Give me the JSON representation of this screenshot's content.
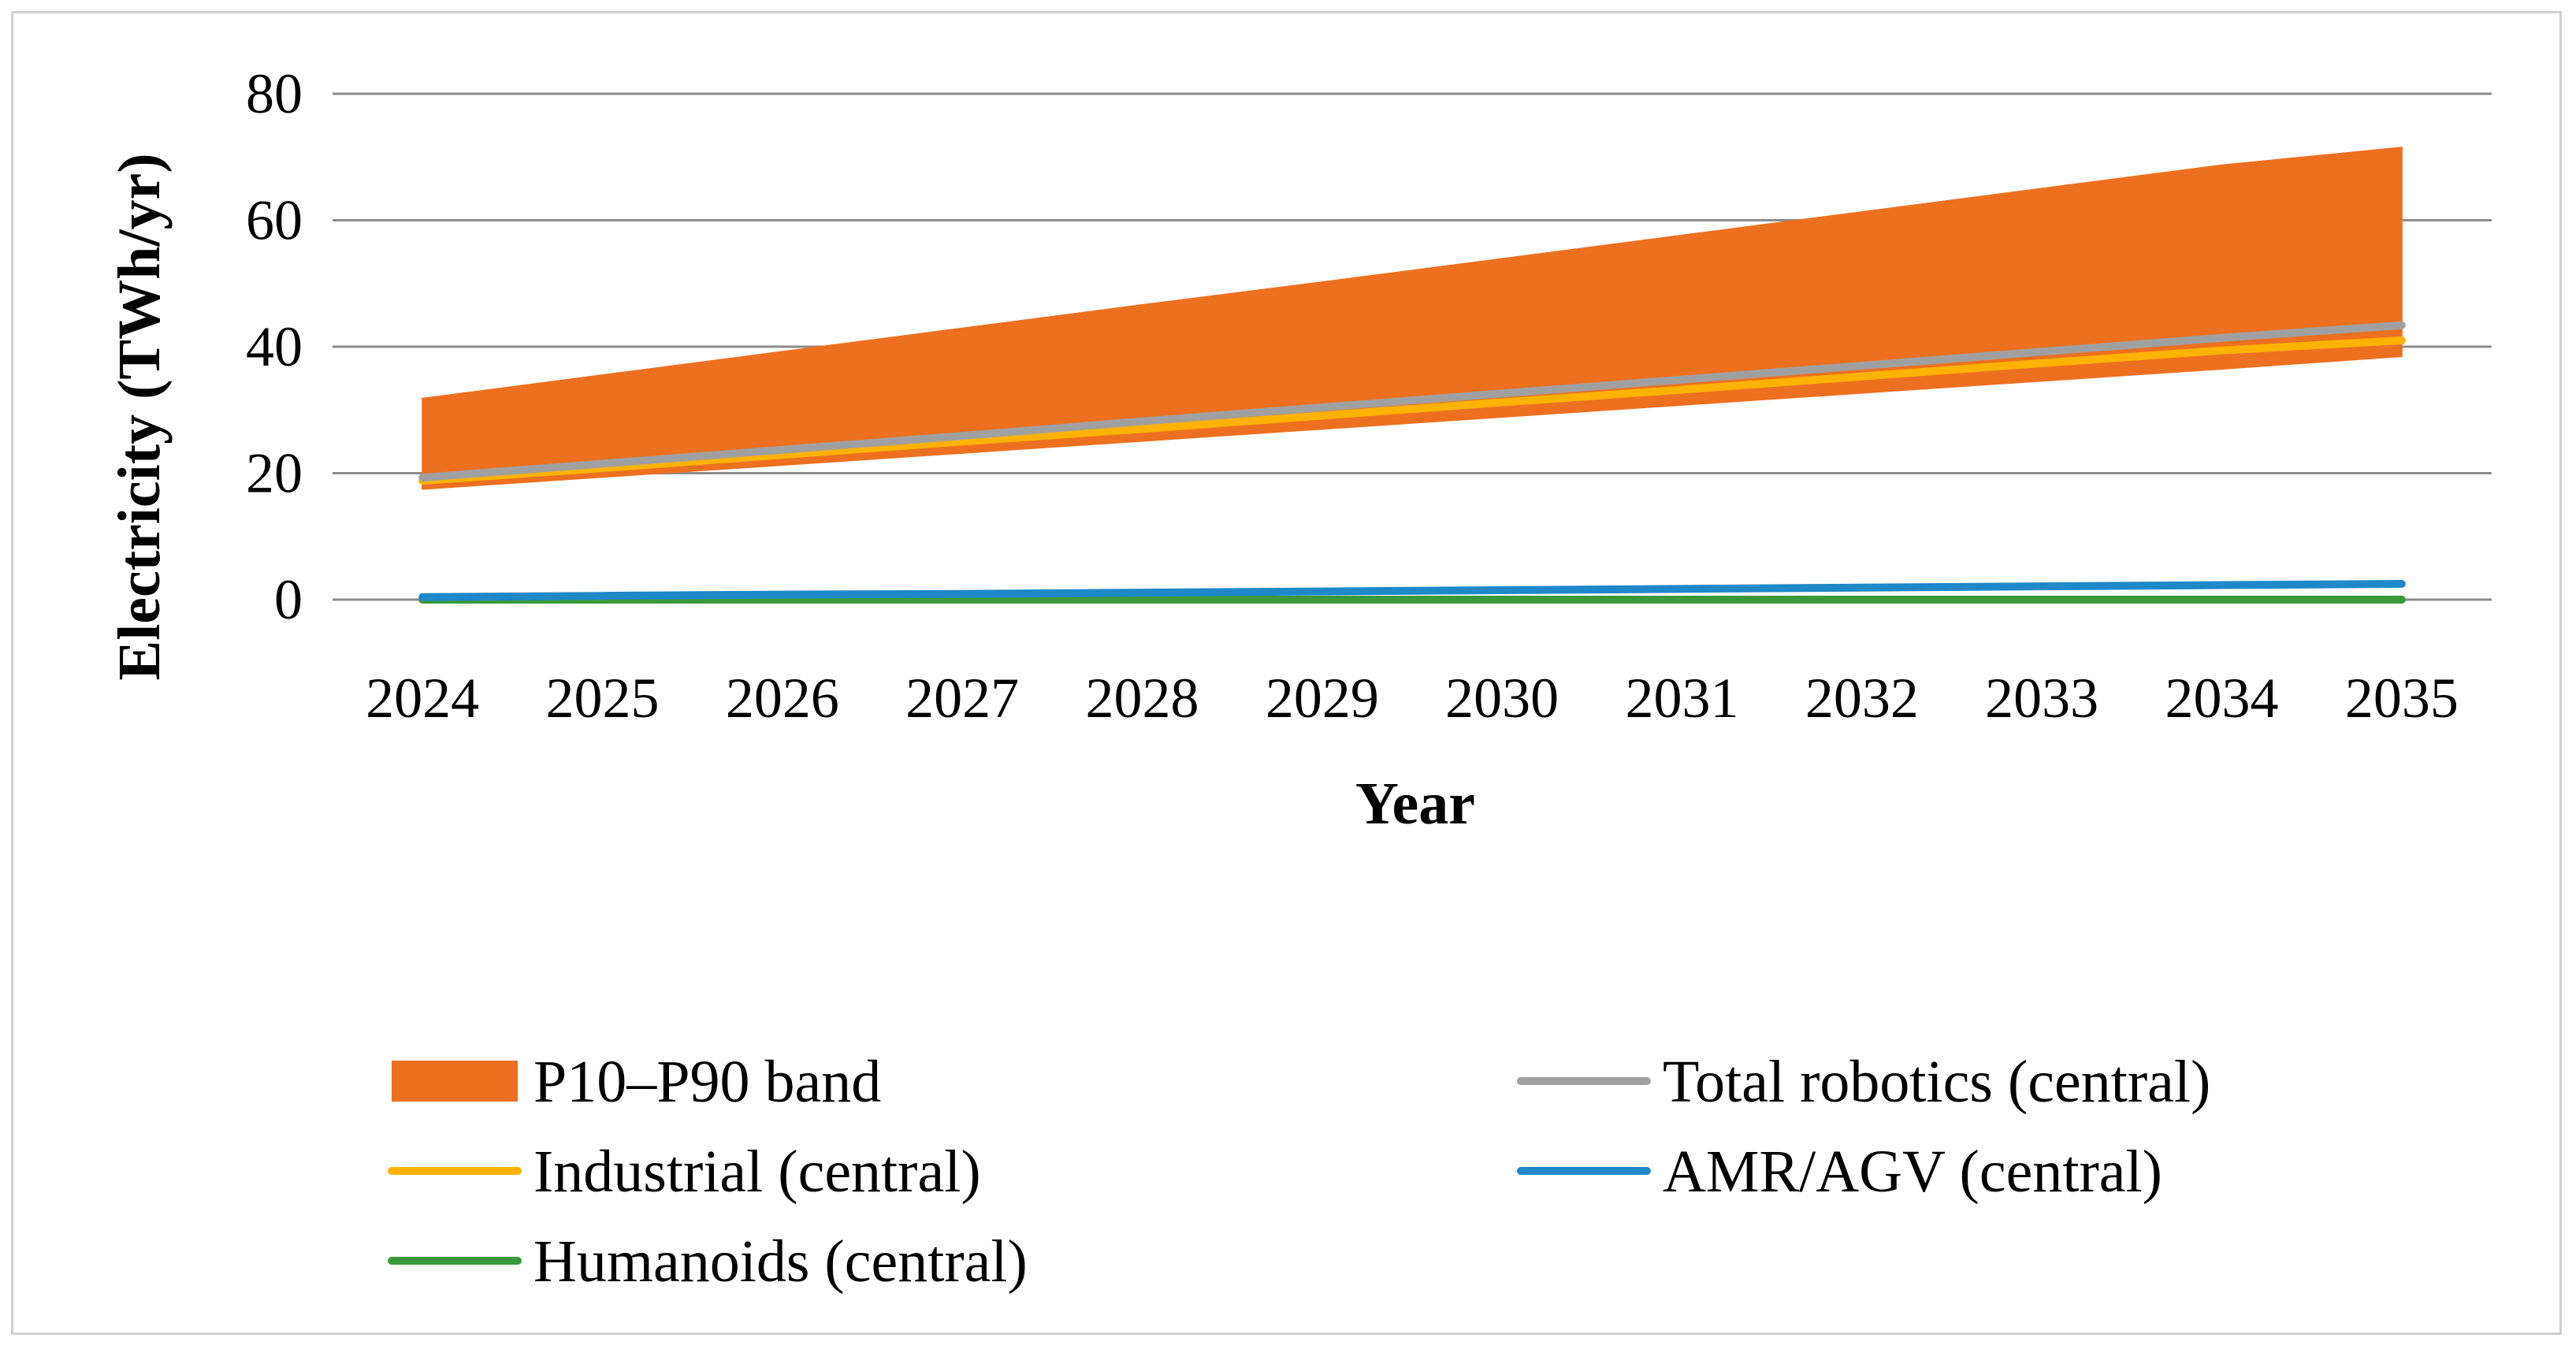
{
  "chart_data": {
    "type": "area",
    "title": "",
    "xlabel": "Year",
    "ylabel": "Electricity (TWh/yr)",
    "ylim": [
      0,
      80
    ],
    "yticks": [
      0,
      20,
      40,
      60,
      80
    ],
    "grid": true,
    "legend_position": "bottom",
    "x": [
      "2024",
      "2025",
      "2026",
      "2027",
      "2028",
      "2029",
      "2030",
      "2031",
      "2032",
      "2033",
      "2034",
      "2035"
    ],
    "band": {
      "name": "P10–P90 band",
      "color": "#ED7020",
      "lower": [
        17.5,
        19.4,
        21.3,
        23.2,
        25.1,
        27.0,
        28.9,
        30.8,
        32.7,
        34.6,
        36.5,
        38.5
      ],
      "upper": [
        31.8,
        35.5,
        39.2,
        42.9,
        46.6,
        50.2,
        53.9,
        57.6,
        61.3,
        65.0,
        68.7,
        71.5
      ]
    },
    "series": [
      {
        "name": "Total robotics (central)",
        "color": "#A0A0A0",
        "values": [
          19.3,
          21.5,
          23.7,
          25.9,
          28.2,
          30.4,
          32.6,
          34.8,
          37.0,
          39.2,
          41.4,
          43.4
        ]
      },
      {
        "name": "Industrial (central)",
        "color": "#FFB300",
        "values": [
          18.8,
          20.8,
          22.9,
          25.0,
          27.0,
          29.1,
          31.2,
          33.2,
          35.3,
          37.4,
          39.4,
          41.0
        ]
      },
      {
        "name": "AMR/AGV (central)",
        "color": "#1E88C8",
        "values": [
          0.4,
          0.6,
          0.8,
          0.9,
          1.1,
          1.3,
          1.5,
          1.7,
          1.9,
          2.1,
          2.3,
          2.5
        ]
      },
      {
        "name": "Humanoids (central)",
        "color": "#3A9A3A",
        "values": [
          0.0,
          0.0,
          0.0,
          0.0,
          0.0,
          0.0,
          0.0,
          0.0,
          0.0,
          0.0,
          0.0,
          0.0
        ]
      }
    ],
    "legend": [
      {
        "name": "P10–P90 band",
        "kind": "area",
        "color": "#ED7020"
      },
      {
        "name": "Total robotics (central)",
        "kind": "line",
        "color": "#A0A0A0"
      },
      {
        "name": "Industrial (central)",
        "kind": "line",
        "color": "#FFB300"
      },
      {
        "name": "AMR/AGV (central)",
        "kind": "line",
        "color": "#1E88C8"
      },
      {
        "name": "Humanoids (central)",
        "kind": "line",
        "color": "#3A9A3A"
      }
    ]
  }
}
